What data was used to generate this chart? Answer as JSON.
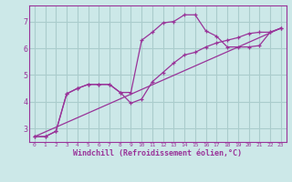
{
  "bg_color": "#cce8e8",
  "grid_color": "#aacccc",
  "line_color": "#993399",
  "xlabel": "Windchill (Refroidissement éolien,°C)",
  "xlim": [
    -0.5,
    23.5
  ],
  "ylim": [
    2.5,
    7.6
  ],
  "yticks": [
    3,
    4,
    5,
    6,
    7
  ],
  "xticks": [
    0,
    1,
    2,
    3,
    4,
    5,
    6,
    7,
    8,
    9,
    10,
    11,
    12,
    13,
    14,
    15,
    16,
    17,
    18,
    19,
    20,
    21,
    22,
    23
  ],
  "line1_x": [
    0,
    1,
    2,
    3,
    4,
    5,
    6,
    7,
    8,
    9,
    10,
    11,
    12,
    13,
    14,
    15,
    16,
    17,
    18,
    19,
    20,
    21,
    22,
    23
  ],
  "line1_y": [
    2.7,
    2.7,
    2.9,
    4.3,
    4.5,
    4.65,
    4.65,
    4.65,
    4.35,
    4.35,
    6.3,
    6.6,
    6.95,
    7.0,
    7.25,
    7.25,
    6.65,
    6.45,
    6.05,
    6.05,
    6.05,
    6.1,
    6.6,
    6.75
  ],
  "line2_x": [
    0,
    1,
    2,
    3,
    4,
    5,
    6,
    7,
    8,
    9,
    10,
    11,
    12,
    13,
    14,
    15,
    16,
    17,
    18,
    19,
    20,
    21,
    22,
    23
  ],
  "line2_y": [
    2.7,
    2.7,
    2.9,
    4.3,
    4.5,
    4.65,
    4.65,
    4.65,
    4.35,
    3.95,
    4.1,
    4.75,
    5.1,
    5.45,
    5.75,
    5.85,
    6.05,
    6.2,
    6.3,
    6.4,
    6.55,
    6.6,
    6.6,
    6.75
  ],
  "line3_x": [
    0,
    23
  ],
  "line3_y": [
    2.7,
    6.75
  ]
}
